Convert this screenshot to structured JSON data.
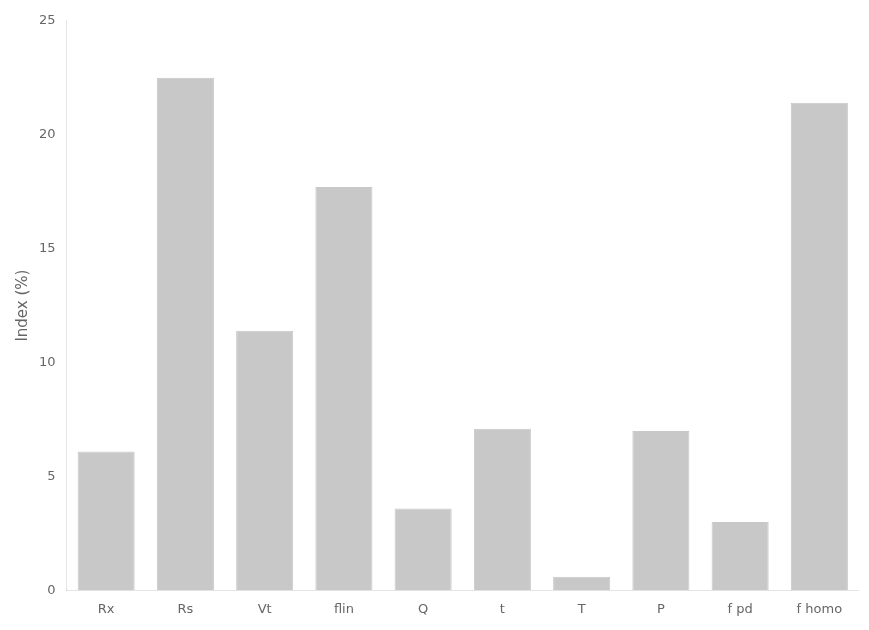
{
  "chart_data": {
    "type": "bar",
    "categories": [
      "Rx",
      "Rs",
      "Vt",
      "flin",
      "Q",
      "t",
      "T",
      "P",
      "f pd",
      "f homo"
    ],
    "values": [
      6.1,
      22.5,
      11.4,
      17.7,
      3.6,
      7.1,
      0.6,
      7.0,
      3.0,
      21.4
    ],
    "color": "#c8c8c8",
    "ylabel": "Index (%)",
    "ylim": [
      0,
      25
    ],
    "yticks": [
      0,
      5,
      10,
      15,
      20,
      25
    ],
    "grid": false
  }
}
